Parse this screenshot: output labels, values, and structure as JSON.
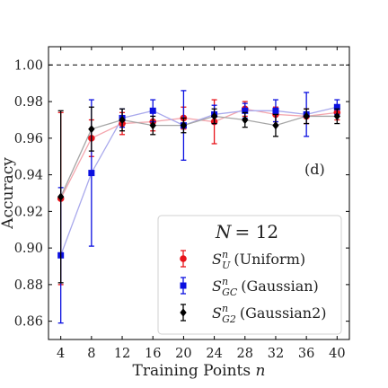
{
  "chart_data": {
    "type": "line",
    "xlabel": "Training Points n",
    "ylabel": "Accuracy",
    "xlim": [
      2.4,
      41.6
    ],
    "ylim": [
      0.85,
      1.01
    ],
    "x_ticks": [
      4,
      8,
      12,
      16,
      20,
      24,
      28,
      32,
      36,
      40
    ],
    "y_ticks": [
      0.86,
      0.88,
      0.9,
      0.92,
      0.94,
      0.96,
      0.98,
      1.0
    ],
    "reference_line": 1.0,
    "annotation": "(d)",
    "legend": {
      "title": "N = 12",
      "placement": "lower-right"
    },
    "x": [
      4,
      8,
      12,
      16,
      20,
      24,
      28,
      32,
      36,
      40
    ],
    "series": [
      {
        "name": "S_U^n (Uniform)",
        "marker": "circle",
        "color": "#e8131a",
        "line_color": "#f4a5ad",
        "values": [
          0.927,
          0.96,
          0.968,
          0.969,
          0.971,
          0.969,
          0.976,
          0.973,
          0.972,
          0.974
        ],
        "errors": [
          0.047,
          0.01,
          0.006,
          0.005,
          0.006,
          0.012,
          0.004,
          0.004,
          0.004,
          0.004
        ]
      },
      {
        "name": "S_GC^n (Gaussian)",
        "marker": "square",
        "color": "#0a0fe0",
        "line_color": "#a9a9ec",
        "values": [
          0.896,
          0.941,
          0.971,
          0.975,
          0.967,
          0.973,
          0.975,
          0.975,
          0.973,
          0.977
        ],
        "errors": [
          0.037,
          0.04,
          0.005,
          0.006,
          0.019,
          0.005,
          0.004,
          0.006,
          0.012,
          0.004
        ]
      },
      {
        "name": "S_G2^n (Gaussian2)",
        "marker": "diamond",
        "color": "#000000",
        "line_color": "#a6a6a6",
        "values": [
          0.928,
          0.965,
          0.97,
          0.967,
          0.967,
          0.972,
          0.97,
          0.967,
          0.972,
          0.972
        ],
        "errors": [
          0.047,
          0.012,
          0.006,
          0.005,
          0.004,
          0.004,
          0.004,
          0.006,
          0.004,
          0.004
        ]
      }
    ]
  },
  "legend_labels": {
    "title_lhs": "N",
    "title_rhs": "= 12",
    "uniform_sub": "U",
    "uniform_text": "(Uniform)",
    "gauss_sub": "GC",
    "gauss_text": "(Gaussian)",
    "gauss2_sub": "G2",
    "gauss2_text": "(Gaussian2)",
    "script_letter": "S",
    "superscript": "n"
  }
}
